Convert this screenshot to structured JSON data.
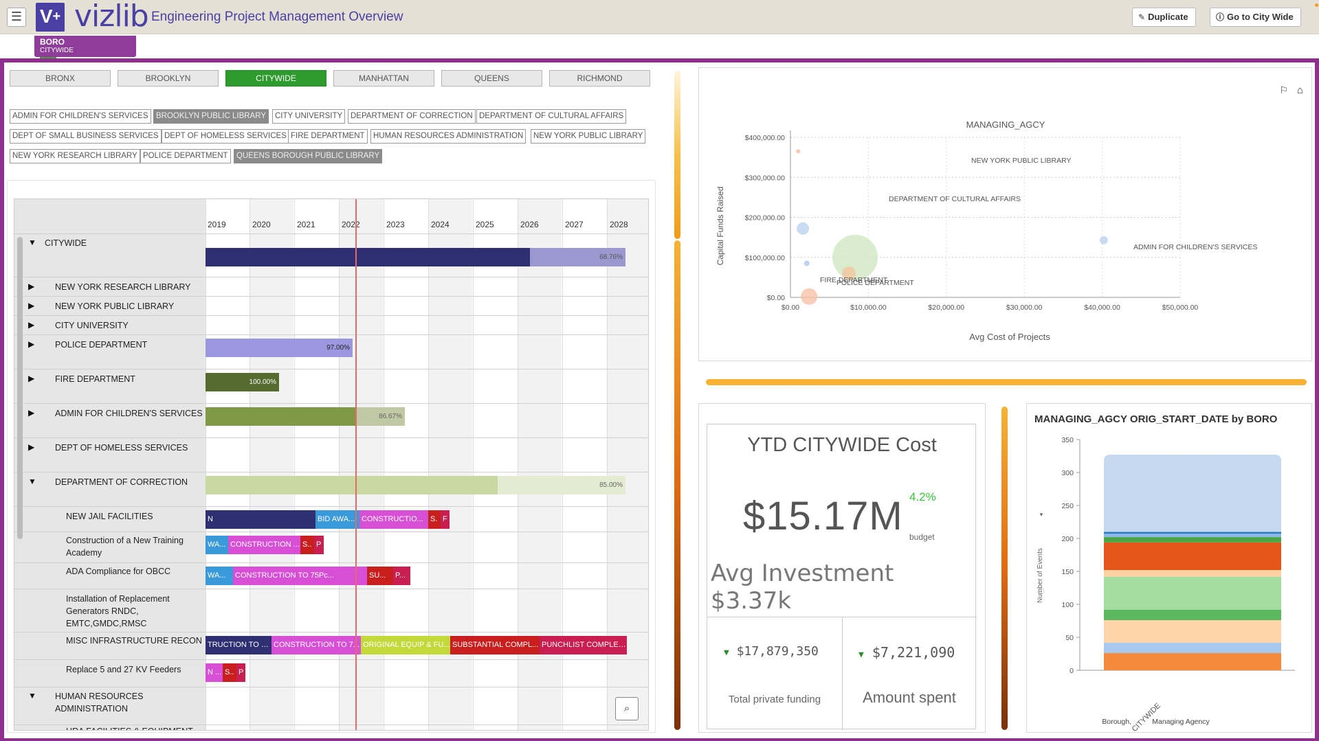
{
  "app": {
    "logo_text": "vizlib",
    "title": "Engineering Project Management Overview",
    "buttons": {
      "duplicate": "Duplicate",
      "goto": "Go to City Wide"
    }
  },
  "selection": {
    "field": "BORO",
    "value": "CITYWIDE"
  },
  "boroughs": [
    "BRONX",
    "BROOKLYN",
    "CITYWIDE",
    "MANHATTAN",
    "QUEENS",
    "RICHMOND"
  ],
  "boroughs_selected": "CITYWIDE",
  "agencies": [
    {
      "label": "ADMIN FOR CHILDREN'S SERVICES",
      "selected": false
    },
    {
      "label": "BROOKLYN PUBLIC LIBRARY",
      "selected": true
    },
    {
      "label": "CITY UNIVERSITY",
      "selected": false
    },
    {
      "label": "DEPARTMENT OF CORRECTION",
      "selected": false
    },
    {
      "label": "DEPARTMENT OF CULTURAL AFFAIRS",
      "selected": false
    },
    {
      "label": "DEPT OF SMALL BUSINESS SERVICES",
      "selected": false
    },
    {
      "label": "DEPT OF HOMELESS SERVICES",
      "selected": false
    },
    {
      "label": "FIRE DEPARTMENT",
      "selected": false
    },
    {
      "label": "HUMAN RESOURCES ADMINISTRATION",
      "selected": false
    },
    {
      "label": "NEW YORK PUBLIC LIBRARY",
      "selected": false
    },
    {
      "label": "NEW YORK RESEARCH LIBRARY",
      "selected": false
    },
    {
      "label": "POLICE DEPARTMENT",
      "selected": false
    },
    {
      "label": "QUEENS BOROUGH PUBLIC LIBRARY",
      "selected": true
    }
  ],
  "gantt": {
    "years": [
      "2019",
      "2020",
      "2021",
      "2022",
      "2023",
      "2024",
      "2025",
      "2026",
      "2027",
      "2028"
    ],
    "rows": {
      "citywide": {
        "label": "CITYWIDE",
        "pct": "68.76%"
      },
      "nyrl": {
        "label": "NEW YORK RESEARCH LIBRARY"
      },
      "nypl": {
        "label": "NEW YORK PUBLIC LIBRARY"
      },
      "cuny": {
        "label": "CITY UNIVERSITY"
      },
      "police": {
        "label": "POLICE DEPARTMENT",
        "pct": "97.00%"
      },
      "fire": {
        "label": "FIRE DEPARTMENT",
        "pct": "100.00%"
      },
      "acs": {
        "label": "ADMIN FOR CHILDREN'S SERVICES",
        "pct": "86.67%"
      },
      "dhs": {
        "label": "DEPT OF HOMELESS SERVICES"
      },
      "doc": {
        "label": "DEPARTMENT OF CORRECTION",
        "pct": "85.00%"
      },
      "jail": {
        "label": "NEW JAIL FACILITIES",
        "segs": [
          "N",
          "BID AWA...",
          "CONSTRUCTIO...",
          "S.",
          "F"
        ]
      },
      "training": {
        "label": "Construction of a New Training Academy",
        "segs": [
          "WA...",
          "CONSTRUCTION ...",
          "S..",
          "P"
        ]
      },
      "ada": {
        "label": "ADA Compliance for OBCC",
        "segs": [
          "WA...",
          "CONSTRUCTION TO 75Pc...",
          "SU...",
          "P..."
        ]
      },
      "gen": {
        "label": "Installation of Replacement Generators RNDC, EMTC,GMDC,RMSC"
      },
      "misc": {
        "label": "MISC INFRASTRUCTURE RECON",
        "segs": [
          "TRUCTION TO 5...",
          "CONSTRUCTION TO 7...",
          "ORIGINAL EQUIP & FU...",
          "SUBSTANTIAL COMPL...",
          "PUNCHLIST COMPLET..."
        ]
      },
      "kv": {
        "label": "Replace 5 and 27 KV Feeders",
        "segs": [
          "N ...",
          "S..",
          "P"
        ]
      },
      "hra": {
        "label": "HUMAN RESOURCES ADMINISTRATION"
      },
      "hra_sub": {
        "label": "HRA FACILITIES & EQUIPMENT"
      }
    }
  },
  "scatter": {
    "title": "MANAGING_AGCY",
    "xlabel": "Avg Cost of Projects",
    "ylabel": "Capital Funds Raised",
    "x_ticks": [
      "$0.00",
      "$10,000.00",
      "$20,000.00",
      "$30,000.00",
      "$40,000.00",
      "$50,000.00"
    ],
    "y_ticks": [
      "$0.00",
      "$100,000.00",
      "$200,000.00",
      "$300,000.00",
      "$400,000.00"
    ],
    "labels": {
      "nypl": "NEW YORK PUBLIC LIBRARY",
      "dca": "DEPARTMENT OF CULTURAL AFFAIRS",
      "acs": "ADMIN FOR CHILDREN'S SERVICES",
      "fire": "FIRE DEPARTMENT",
      "police": "POLICE DEPARTMENT"
    }
  },
  "kpi": {
    "title": "YTD CITYWIDE Cost",
    "value": "$15.17M",
    "change": "4.2%",
    "change_label": "budget",
    "avg": "Avg Investment $3.37k",
    "private_value": "$17,879,350",
    "private_label": "Total private funding",
    "spent_value": "$7,221,090",
    "spent_label": "Amount spent"
  },
  "stacked": {
    "title": "MANAGING_AGCY ORIG_START_DATE by BORO",
    "ylabel": "Number of Events",
    "y_ticks": [
      "0",
      "50",
      "100",
      "150",
      "200",
      "250",
      "300",
      "350"
    ],
    "category": "CITYWIDE",
    "xlabel_1": "Borough,",
    "xlabel_2": "Managing Agency"
  },
  "colors": {
    "accent": "#4a3fa2",
    "frame": "#8f2f8f",
    "selected": "#2e9b2e",
    "today_line": "#e56a6a"
  },
  "chart_data": [
    {
      "type": "scatter",
      "title": "MANAGING_AGCY",
      "xlabel": "Avg Cost of Projects",
      "ylabel": "Capital Funds Raised",
      "xlim": [
        0,
        50000
      ],
      "ylim": [
        0,
        400000
      ],
      "points": [
        {
          "label": "NEW YORK PUBLIC LIBRARY",
          "x": 1000,
          "y": 365000,
          "r": 3,
          "color": "#f6b7a0"
        },
        {
          "label": "",
          "x": 1600,
          "y": 172000,
          "r": 9,
          "color": "#bcd2ee"
        },
        {
          "label": "",
          "x": 2100,
          "y": 85000,
          "r": 4,
          "color": "#aec8ea"
        },
        {
          "label": "ADMIN FOR CHILDREN'S SERVICES",
          "x": 40200,
          "y": 143000,
          "r": 6,
          "color": "#bcd2ee"
        },
        {
          "label": "DEPARTMENT OF CULTURAL AFFAIRS",
          "x": 8300,
          "y": 100000,
          "r": 33,
          "color": "#cfe8c2"
        },
        {
          "label": "POLICE DEPARTMENT",
          "x": 7500,
          "y": 60000,
          "r": 10,
          "color": "#f3c6a0"
        },
        {
          "label": "FIRE DEPARTMENT",
          "x": 2400,
          "y": 2000,
          "r": 12,
          "color": "#f6c2a6"
        }
      ]
    },
    {
      "type": "bar",
      "title": "MANAGING_AGCY ORIG_START_DATE by BORO",
      "categories": [
        "CITYWIDE"
      ],
      "ylabel": "Number of Events",
      "ylim": [
        0,
        350
      ],
      "stacked": true,
      "series": [
        {
          "values": [
            26
          ],
          "color": "#f58a3c"
        },
        {
          "values": [
            16
          ],
          "color": "#a9c8ee"
        },
        {
          "values": [
            34
          ],
          "color": "#fdd3a8"
        },
        {
          "values": [
            16
          ],
          "color": "#5cb85c"
        },
        {
          "values": [
            50
          ],
          "color": "#a5dca0"
        },
        {
          "values": [
            10
          ],
          "color": "#fdd0a2"
        },
        {
          "values": [
            42
          ],
          "color": "#e4561a"
        },
        {
          "values": [
            8
          ],
          "color": "#48a848"
        },
        {
          "values": [
            5
          ],
          "color": "#8fb8e6"
        },
        {
          "values": [
            3
          ],
          "color": "#2f7cc8"
        },
        {
          "values": [
            117
          ],
          "color": "#c4d9f0"
        }
      ]
    }
  ]
}
